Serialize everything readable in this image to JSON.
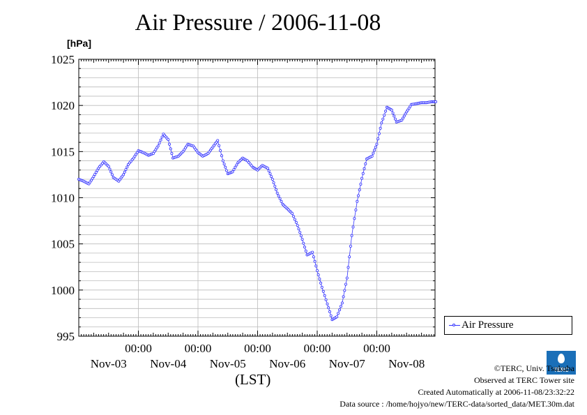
{
  "chart_data": {
    "type": "line",
    "title": "Air Pressure / 2006-11-08",
    "ylabel": "[hPa]",
    "xlabel": "(LST)",
    "ylim": [
      995,
      1025
    ],
    "yticks": [
      995,
      1000,
      1005,
      1010,
      1015,
      1020,
      1025
    ],
    "x_day_labels": [
      "Nov-03",
      "Nov-04",
      "Nov-05",
      "Nov-06",
      "Nov-07",
      "Nov-08"
    ],
    "x_time_label": "00:00",
    "grid": true,
    "legend_position": "right",
    "series": [
      {
        "name": "Air Pressure",
        "color": "#3333ff",
        "marker": "circle",
        "x_day_offset": [
          0.0,
          0.08,
          0.17,
          0.25,
          0.33,
          0.42,
          0.5,
          0.58,
          0.67,
          0.75,
          0.83,
          0.92,
          1.0,
          1.08,
          1.17,
          1.25,
          1.33,
          1.42,
          1.5,
          1.58,
          1.67,
          1.75,
          1.83,
          1.92,
          2.0,
          2.08,
          2.17,
          2.25,
          2.33,
          2.42,
          2.5,
          2.58,
          2.67,
          2.75,
          2.83,
          2.92,
          3.0,
          3.08,
          3.17,
          3.25,
          3.33,
          3.42,
          3.5,
          3.58,
          3.67,
          3.75,
          3.83,
          3.92,
          4.0,
          4.08,
          4.17,
          4.25,
          4.33,
          4.42,
          4.5,
          4.58,
          4.67,
          4.75,
          4.83,
          4.92,
          5.0,
          5.08,
          5.17,
          5.25,
          5.33,
          5.42,
          5.5,
          5.58,
          5.67,
          5.75,
          5.83,
          5.92,
          5.99
        ],
        "values": [
          1012.0,
          1011.8,
          1011.5,
          1012.3,
          1013.2,
          1013.9,
          1013.4,
          1012.2,
          1011.8,
          1012.5,
          1013.6,
          1014.3,
          1015.1,
          1014.9,
          1014.6,
          1014.8,
          1015.6,
          1016.9,
          1016.3,
          1014.3,
          1014.5,
          1015.0,
          1015.8,
          1015.6,
          1014.9,
          1014.5,
          1014.8,
          1015.5,
          1016.2,
          1014.0,
          1012.6,
          1012.8,
          1013.8,
          1014.3,
          1014.0,
          1013.3,
          1013.0,
          1013.5,
          1013.2,
          1012.0,
          1010.5,
          1009.3,
          1008.8,
          1008.3,
          1007.0,
          1005.5,
          1003.8,
          1004.1,
          1002.1,
          1000.3,
          998.5,
          996.8,
          997.1,
          998.6,
          1001.3,
          1005.9,
          1009.6,
          1012.1,
          1014.2,
          1014.5,
          1015.8,
          1018.1,
          1019.8,
          1019.5,
          1018.2,
          1018.4,
          1019.3,
          1020.1,
          1020.2,
          1020.3,
          1020.3,
          1020.4,
          1020.4
        ]
      }
    ]
  },
  "footer": {
    "copyright": "©TERC, Univ. Tsukuba",
    "observed": "Observed at TERC Tower site",
    "created": "Created Automatically at 2006-11-08/23:32:22",
    "source": "Data source : /home/hojyo/new/TERC-data/sorted_data/MET.30m.dat",
    "logo_text": "TERC"
  }
}
